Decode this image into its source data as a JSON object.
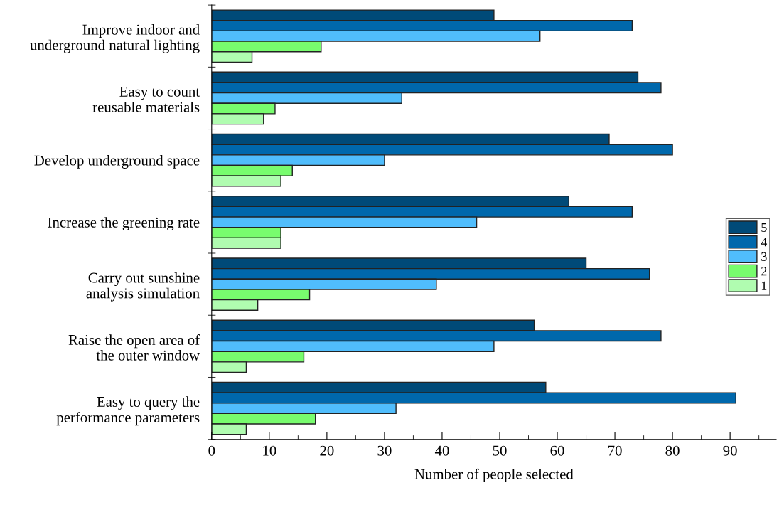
{
  "chart_data": {
    "type": "bar",
    "orientation": "horizontal",
    "xlabel": "Number of people selected",
    "categories": [
      "Improve indoor and\nunderground natural lighting",
      "Easy to count\nreusable materials",
      "Develop underground space",
      "Increase the greening rate",
      "Carry out sunshine\nanalysis simulation",
      "Raise the open area of\nthe outer window",
      "Easy to query the\nperformance parameters"
    ],
    "series": [
      {
        "name": "5",
        "color": "#004a78",
        "values": [
          49,
          74,
          69,
          62,
          65,
          56,
          58
        ]
      },
      {
        "name": "4",
        "color": "#0068ac",
        "values": [
          73,
          78,
          80,
          73,
          76,
          78,
          91
        ]
      },
      {
        "name": "3",
        "color": "#50bdfc",
        "values": [
          57,
          33,
          30,
          46,
          39,
          49,
          32
        ]
      },
      {
        "name": "2",
        "color": "#78fc6e",
        "values": [
          19,
          11,
          14,
          12,
          17,
          16,
          18
        ]
      },
      {
        "name": "1",
        "color": "#b0fcb0",
        "values": [
          7,
          9,
          12,
          12,
          8,
          6,
          6
        ]
      }
    ],
    "xlim": [
      0,
      98
    ],
    "xticks": [
      0,
      10,
      20,
      30,
      40,
      50,
      60,
      70,
      80,
      90
    ],
    "grid": false,
    "legend": "right"
  }
}
